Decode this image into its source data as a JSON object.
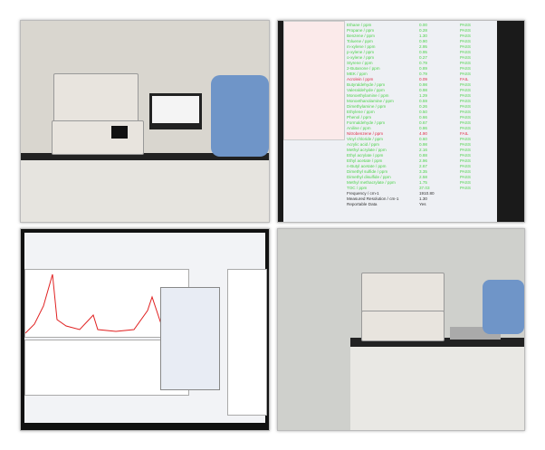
{
  "photos": [
    "lab-instrument-with-laptop",
    "analysis-results-screen",
    "spectrum-software-screen",
    "instrument-on-lab-bench"
  ],
  "results": {
    "rows": [
      {
        "name": "Ethane / ppm",
        "value": "0.00",
        "status": "PASS"
      },
      {
        "name": "Propane / ppm",
        "value": "0.28",
        "status": "PASS"
      },
      {
        "name": "Benzene / ppm",
        "value": "1.30",
        "status": "PASS"
      },
      {
        "name": "Toluene / ppm",
        "value": "0.90",
        "status": "PASS"
      },
      {
        "name": "m-xylene / ppm",
        "value": "2.95",
        "status": "PASS"
      },
      {
        "name": "p-xylene / ppm",
        "value": "0.95",
        "status": "PASS"
      },
      {
        "name": "o-xylene / ppm",
        "value": "0.27",
        "status": "PASS"
      },
      {
        "name": "Styrene / ppm",
        "value": "0.79",
        "status": "PASS"
      },
      {
        "name": "2-Butanone / ppm",
        "value": "0.89",
        "status": "PASS"
      },
      {
        "name": "MEK / ppm",
        "value": "0.79",
        "status": "PASS"
      },
      {
        "name": "Acrolein / ppm",
        "value": "0.09",
        "status": "FAIL"
      },
      {
        "name": "Butyraldehyde / ppm",
        "value": "0.98",
        "status": "PASS"
      },
      {
        "name": "Valeraldehyde / ppm",
        "value": "0.98",
        "status": "PASS"
      },
      {
        "name": "Monoethylamine / ppm",
        "value": "1.29",
        "status": "PASS"
      },
      {
        "name": "Monoethanolamine / ppm",
        "value": "0.59",
        "status": "PASS"
      },
      {
        "name": "Dimethylamine / ppm",
        "value": "0.26",
        "status": "PASS"
      },
      {
        "name": "Ethylene / ppm",
        "value": "0.50",
        "status": "PASS"
      },
      {
        "name": "Phenol / ppm",
        "value": "0.66",
        "status": "PASS"
      },
      {
        "name": "Formaldehyde / ppm",
        "value": "0.67",
        "status": "PASS"
      },
      {
        "name": "Aniline / ppm",
        "value": "0.86",
        "status": "PASS"
      },
      {
        "name": "Nitrobenzene / ppm",
        "value": "4.90",
        "status": "FAIL"
      },
      {
        "name": "Vinyl chloride / ppm",
        "value": "0.60",
        "status": "PASS"
      },
      {
        "name": "Acrylic acid / ppm",
        "value": "0.98",
        "status": "PASS"
      },
      {
        "name": "Methyl acrylate / ppm",
        "value": "2.16",
        "status": "PASS"
      },
      {
        "name": "Ethyl acrylate / ppm",
        "value": "0.88",
        "status": "PASS"
      },
      {
        "name": "Ethyl acetate / ppm",
        "value": "2.96",
        "status": "PASS"
      },
      {
        "name": "n-Butyl acetate / ppm",
        "value": "2.67",
        "status": "PASS"
      },
      {
        "name": "Dimethyl sulfide / ppm",
        "value": "3.35",
        "status": "PASS"
      },
      {
        "name": "Dimethyl disulfide / ppm",
        "value": "2.58",
        "status": "PASS"
      },
      {
        "name": "Methyl methacrylate / ppm",
        "value": "1.75",
        "status": "PASS"
      },
      {
        "name": "TOC / ppm",
        "value": "37.03",
        "status": "PASS"
      }
    ],
    "footer": [
      {
        "name": "Frequency / cm-1",
        "value": "1910.80"
      },
      {
        "name": "Measured Resolution / cm-1",
        "value": "1.30"
      },
      {
        "name": "Reportable Data",
        "value": "Yes"
      }
    ]
  },
  "colors": {
    "pass": "#4cd24a",
    "fail": "#e0304a"
  }
}
